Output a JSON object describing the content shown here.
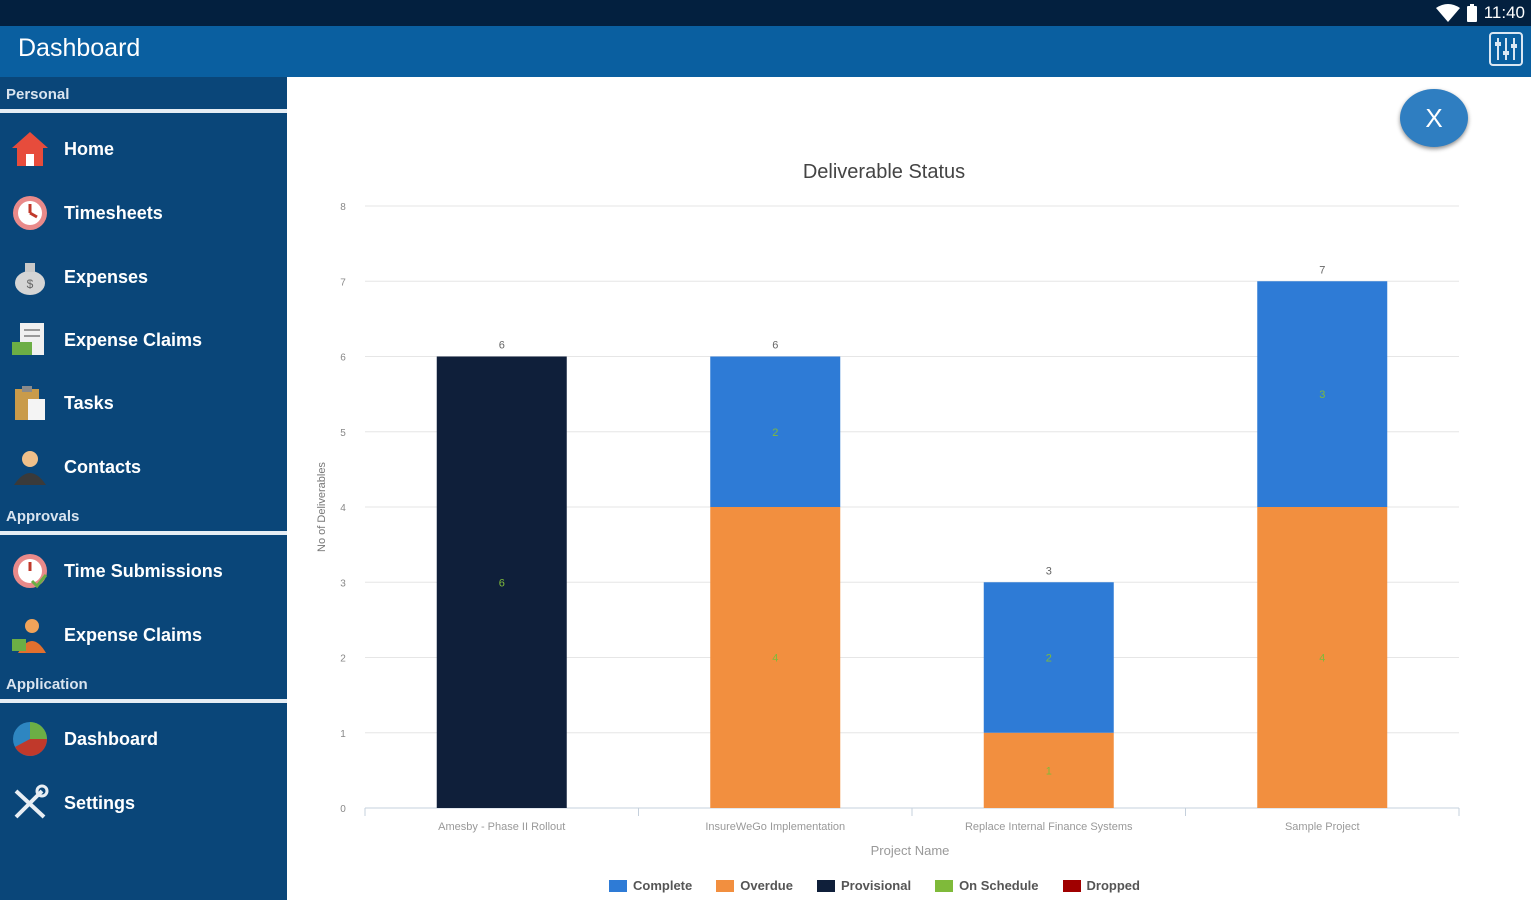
{
  "status_bar": {
    "time": "11:40"
  },
  "app_bar": {
    "title": "Dashboard"
  },
  "sidebar": {
    "sections": [
      {
        "title": "Personal",
        "items": [
          {
            "label": "Home",
            "icon": "home-icon"
          },
          {
            "label": "Timesheets",
            "icon": "clock-icon"
          },
          {
            "label": "Expenses",
            "icon": "money-bag-icon"
          },
          {
            "label": "Expense Claims",
            "icon": "claim-document-icon"
          },
          {
            "label": "Tasks",
            "icon": "clipboard-icon"
          },
          {
            "label": "Contacts",
            "icon": "person-icon"
          }
        ]
      },
      {
        "title": "Approvals",
        "items": [
          {
            "label": "Time Submissions",
            "icon": "clock-check-icon"
          },
          {
            "label": "Expense Claims",
            "icon": "approval-person-icon"
          }
        ]
      },
      {
        "title": "Application",
        "items": [
          {
            "label": "Dashboard",
            "icon": "pie-chart-icon"
          },
          {
            "label": "Settings",
            "icon": "tools-icon"
          }
        ]
      }
    ]
  },
  "close_button": {
    "label": "X"
  },
  "chart_data": {
    "type": "bar",
    "stacked": true,
    "title": "Deliverable Status",
    "xlabel": "Project Name",
    "ylabel": "No of Deliverables",
    "ylim": [
      0,
      8
    ],
    "yticks": [
      "0",
      "1",
      "2",
      "3",
      "4",
      "5",
      "6",
      "7",
      "8"
    ],
    "categories": [
      "Amesby - Phase II Rollout",
      "InsureWeGo Implementation",
      "Replace Internal Finance Systems",
      "Sample Project"
    ],
    "totals": [
      6,
      6,
      3,
      7
    ],
    "series": [
      {
        "name": "Complete",
        "color": "#2e7bd6",
        "values": [
          0,
          2,
          2,
          3
        ]
      },
      {
        "name": "Overdue",
        "color": "#f28f3f",
        "values": [
          0,
          4,
          1,
          4
        ]
      },
      {
        "name": "Provisional",
        "color": "#0f1f3a",
        "values": [
          6,
          0,
          0,
          0
        ]
      },
      {
        "name": "On Schedule",
        "color": "#7fba3a",
        "values": [
          0,
          0,
          0,
          0
        ]
      },
      {
        "name": "Dropped",
        "color": "#a00000",
        "values": [
          0,
          0,
          0,
          0
        ]
      }
    ]
  }
}
